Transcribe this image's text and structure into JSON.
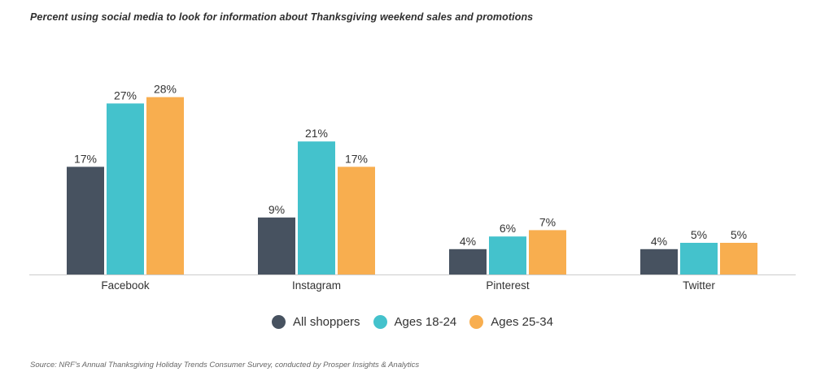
{
  "title": "Percent using social media to look for information about Thanksgiving weekend sales and promotions",
  "source": "Source:  NRF's Annual Thanksgiving Holiday Trends Consumer Survey, conducted by Prosper Insights & Analytics",
  "colors": {
    "all": "#475260",
    "age1824": "#44c2cc",
    "age2534": "#f8ae4f",
    "axis": "#cccccc"
  },
  "chart_data": {
    "type": "bar",
    "title": "Percent using social media to look for information about Thanksgiving weekend sales and promotions",
    "categories": [
      "Facebook",
      "Instagram",
      "Pinterest",
      "Twitter"
    ],
    "series": [
      {
        "name": "All shoppers",
        "values": [
          17,
          9,
          4,
          4
        ],
        "labels": [
          "17%",
          "9%",
          "4%",
          "4%"
        ]
      },
      {
        "name": "Ages 18-24",
        "values": [
          27,
          21,
          6,
          5
        ],
        "labels": [
          "27%",
          "21%",
          "6%",
          "5%"
        ]
      },
      {
        "name": "Ages 25-34",
        "values": [
          28,
          17,
          7,
          5
        ],
        "labels": [
          "28%",
          "17%",
          "7%",
          "5%"
        ]
      }
    ],
    "xlabel": "",
    "ylabel": "",
    "ylim": [
      0,
      28
    ],
    "grid": false,
    "legend_position": "bottom"
  }
}
